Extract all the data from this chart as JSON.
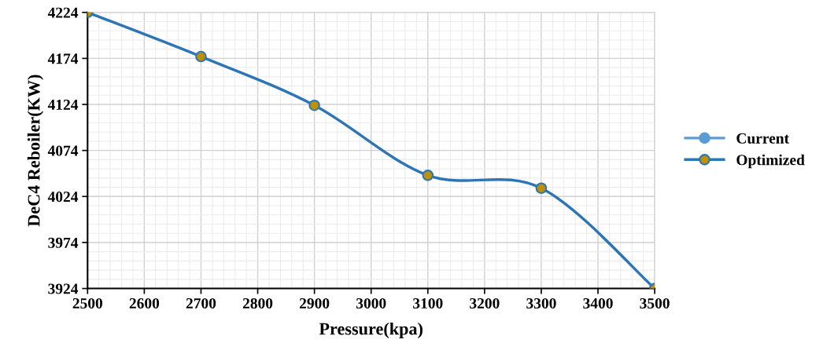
{
  "chart_data": {
    "type": "line",
    "xlabel": "Pressure(kpa)",
    "ylabel": "DeC4 Reboiler(KW)",
    "x": [
      2500,
      2700,
      2900,
      3100,
      3300,
      3500
    ],
    "series": [
      {
        "name": "Current",
        "color": "#5b9bd5",
        "values": [
          null,
          null,
          null,
          null,
          null,
          null
        ]
      },
      {
        "name": "Optimized",
        "color": "#2e75b6",
        "colors": [
          "#bf9000",
          "#bf9000",
          "#bf9000",
          "#bf9000",
          "#bf9000",
          "#bf9000"
        ],
        "values": [
          4224,
          4176,
          4123,
          4047,
          4033,
          3924
        ]
      }
    ],
    "xlim": [
      2500,
      3500
    ],
    "xticks": [
      2500,
      2600,
      2700,
      2800,
      2900,
      3000,
      3100,
      3200,
      3300,
      3400,
      3500
    ],
    "ylim": [
      3924,
      4224
    ],
    "yticks": [
      3924,
      3974,
      4024,
      4074,
      4124,
      4174,
      4224
    ],
    "grid": true,
    "legend": "right",
    "marker": "circle",
    "line_style": "solid"
  }
}
